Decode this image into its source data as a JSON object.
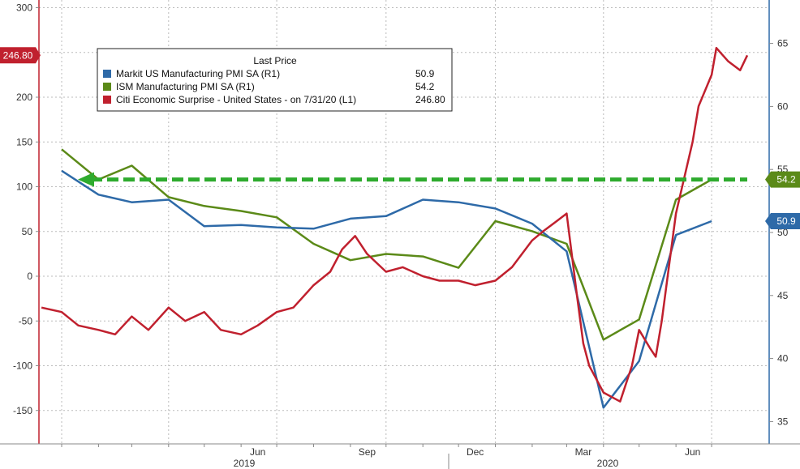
{
  "chart_data": {
    "type": "line",
    "left_axis": {
      "range": [
        -180,
        300
      ],
      "ticks": [
        -150,
        -100,
        -50,
        0,
        50,
        100,
        150,
        200,
        250,
        300
      ]
    },
    "right_axis": {
      "range": [
        33,
        69
      ],
      "ticks": [
        35,
        40,
        45,
        50,
        55,
        60,
        65
      ]
    },
    "x_axis": {
      "month_labels": [
        "Jun",
        "Sep",
        "Dec",
        "Mar",
        "Jun"
      ],
      "year_labels": [
        "2019",
        "2020"
      ]
    },
    "legend": {
      "header": "Last Price",
      "placement": "top-left",
      "entries": [
        {
          "label": "Markit US Manufacturing PMI SA  (R1)",
          "value": "50.9",
          "color": "#2e6aa8"
        },
        {
          "label": "ISM Manufacturing PMI SA  (R1)",
          "value": "54.2",
          "color": "#5b8a18"
        },
        {
          "label": "Citi Economic Surprise - United States -   on 7/31/20  (L1)",
          "value": "246.80",
          "color": "#c0202e"
        }
      ]
    },
    "badges": [
      {
        "text": "246.80",
        "color": "#c0202e",
        "axis": "left",
        "value": 246.8
      },
      {
        "text": "54.2",
        "color": "#5b8a18",
        "axis": "right",
        "value": 54.2
      },
      {
        "text": "50.9",
        "color": "#2e6aa8",
        "axis": "right",
        "value": 50.9
      }
    ],
    "annotation": {
      "type": "dashed-arrow",
      "color": "#2eab2e",
      "axis": "right",
      "value": 54.2
    },
    "series": [
      {
        "name": "Markit US Manufacturing PMI SA  (R1)",
        "axis": "right",
        "color": "#2e6aa8",
        "x": [
          "2019-01",
          "2019-02",
          "2019-03",
          "2019-04",
          "2019-05",
          "2019-06",
          "2019-07",
          "2019-08",
          "2019-09",
          "2019-10",
          "2019-11",
          "2019-12",
          "2020-01",
          "2020-02",
          "2020-03",
          "2020-04",
          "2020-05",
          "2020-06",
          "2020-07"
        ],
        "values": [
          54.9,
          53.0,
          52.4,
          52.6,
          50.5,
          50.6,
          50.4,
          50.3,
          51.1,
          51.3,
          52.6,
          52.4,
          51.9,
          50.7,
          48.5,
          36.1,
          39.8,
          49.8,
          50.9
        ]
      },
      {
        "name": "ISM Manufacturing PMI SA  (R1)",
        "axis": "right",
        "color": "#5b8a18",
        "x": [
          "2019-01",
          "2019-02",
          "2019-03",
          "2019-04",
          "2019-05",
          "2019-06",
          "2019-07",
          "2019-08",
          "2019-09",
          "2019-10",
          "2019-11",
          "2019-12",
          "2020-01",
          "2020-02",
          "2020-03",
          "2020-04",
          "2020-05",
          "2020-06",
          "2020-07"
        ],
        "values": [
          56.6,
          54.2,
          55.3,
          52.8,
          52.1,
          51.7,
          51.2,
          49.1,
          47.8,
          48.3,
          48.1,
          47.2,
          50.9,
          50.1,
          49.1,
          41.5,
          43.1,
          52.6,
          54.2
        ]
      },
      {
        "name": "Citi Economic Surprise - United States -   on 7/31/20  (L1)",
        "axis": "left",
        "color": "#c0202e",
        "x": [
          "2018-12-15",
          "2019-01-01",
          "2019-01-15",
          "2019-02-01",
          "2019-02-15",
          "2019-03-01",
          "2019-03-15",
          "2019-04-01",
          "2019-04-15",
          "2019-05-01",
          "2019-05-15",
          "2019-06-01",
          "2019-06-15",
          "2019-07-01",
          "2019-07-15",
          "2019-08-01",
          "2019-08-15",
          "2019-08-25",
          "2019-09-05",
          "2019-09-15",
          "2019-10-01",
          "2019-10-15",
          "2019-11-01",
          "2019-11-15",
          "2019-12-01",
          "2019-12-15",
          "2020-01-01",
          "2020-01-15",
          "2020-02-01",
          "2020-02-10",
          "2020-02-20",
          "2020-03-01",
          "2020-03-10",
          "2020-03-15",
          "2020-03-20",
          "2020-04-01",
          "2020-04-15",
          "2020-04-25",
          "2020-05-01",
          "2020-05-10",
          "2020-05-15",
          "2020-05-20",
          "2020-06-01",
          "2020-06-15",
          "2020-06-20",
          "2020-07-01",
          "2020-07-05",
          "2020-07-15",
          "2020-07-25",
          "2020-07-31"
        ],
        "values": [
          -35,
          -40,
          -55,
          -60,
          -65,
          -45,
          -60,
          -35,
          -50,
          -40,
          -60,
          -65,
          -55,
          -40,
          -35,
          -10,
          5,
          30,
          45,
          25,
          5,
          10,
          0,
          -5,
          -5,
          -10,
          -5,
          10,
          40,
          50,
          60,
          70,
          -25,
          -75,
          -100,
          -130,
          -140,
          -100,
          -60,
          -80,
          -90,
          -50,
          70,
          150,
          190,
          225,
          255,
          240,
          230,
          246.8
        ]
      }
    ]
  }
}
